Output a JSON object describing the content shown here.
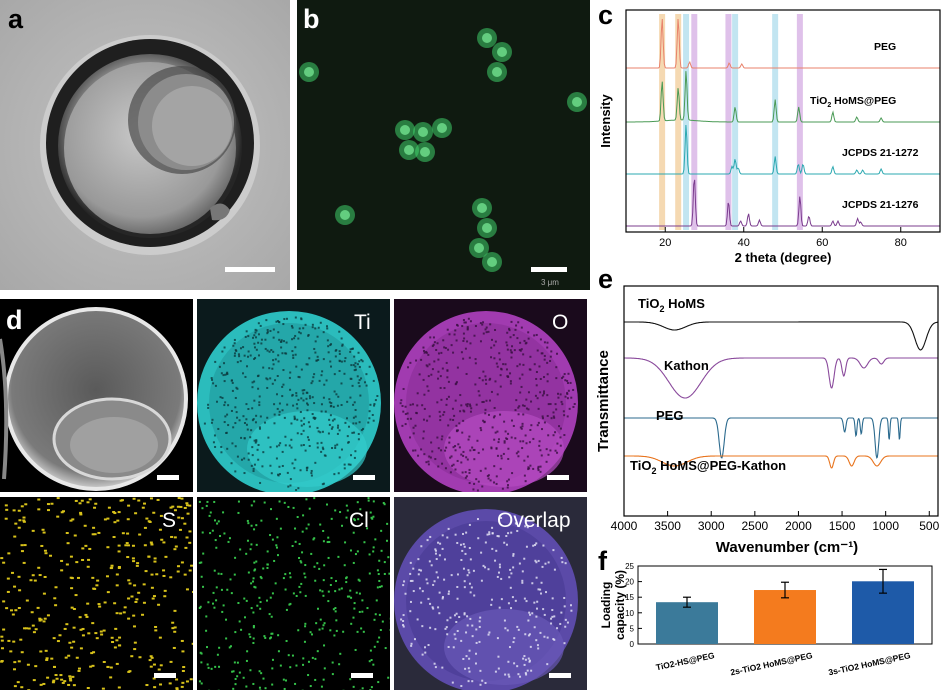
{
  "panels": {
    "a": {
      "letter": "a"
    },
    "b": {
      "letter": "b",
      "scale_text": "3 μm"
    },
    "c": {
      "letter": "c"
    },
    "d": {
      "letter": "d",
      "maps": [
        "Ti",
        "O",
        "S",
        "Cl",
        "Overlap"
      ]
    },
    "e": {
      "letter": "e"
    },
    "f": {
      "letter": "f"
    }
  },
  "colors": {
    "ti_map": "#2fc6c6",
    "o_map": "#a63ab3",
    "s_map": "#d8c21a",
    "cl_map": "#35c24a",
    "fluor": "#3fd06a"
  },
  "chart_data": [
    {
      "id": "c",
      "type": "line",
      "xlabel": "2 theta (degree)",
      "ylabel": "Intensity",
      "xlim": [
        10,
        90
      ],
      "xticks": [
        20,
        40,
        60,
        80
      ],
      "series": [
        {
          "name": "PEG",
          "color": "#e8826b",
          "peaks": [
            [
              19.2,
              1.0
            ],
            [
              23.3,
              1.0
            ],
            [
              26.2,
              0.12
            ],
            [
              36.3,
              0.1
            ],
            [
              39.5,
              0.08
            ]
          ]
        },
        {
          "name": "TiO2 HoMS@PEG",
          "color": "#4a9a55",
          "peaks": [
            [
              19.2,
              0.8
            ],
            [
              23.3,
              0.65
            ],
            [
              25.3,
              1.0
            ],
            [
              37.8,
              0.3
            ],
            [
              48.0,
              0.45
            ],
            [
              54.0,
              0.3
            ],
            [
              62.7,
              0.2
            ],
            [
              68.8,
              0.1
            ],
            [
              75.0,
              0.08
            ]
          ]
        },
        {
          "name": "JCPDS 21-1272",
          "color": "#2ba8b0",
          "peaks": [
            [
              25.3,
              1.0
            ],
            [
              37.0,
              0.15
            ],
            [
              37.8,
              0.3
            ],
            [
              38.6,
              0.12
            ],
            [
              48.0,
              0.35
            ],
            [
              53.9,
              0.2
            ],
            [
              55.1,
              0.2
            ],
            [
              62.7,
              0.15
            ],
            [
              68.8,
              0.08
            ],
            [
              70.3,
              0.08
            ],
            [
              75.0,
              0.1
            ]
          ]
        },
        {
          "name": "JCPDS 21-1276",
          "color": "#7b3c8e",
          "peaks": [
            [
              27.4,
              1.0
            ],
            [
              36.1,
              0.5
            ],
            [
              39.2,
              0.1
            ],
            [
              41.2,
              0.25
            ],
            [
              44.0,
              0.12
            ],
            [
              54.3,
              0.6
            ],
            [
              56.6,
              0.2
            ],
            [
              62.7,
              0.1
            ],
            [
              64.0,
              0.1
            ],
            [
              69.0,
              0.15
            ],
            [
              69.8,
              0.08
            ]
          ]
        }
      ],
      "highlight_bands": [
        {
          "x": 19.2,
          "color": "#f3d2a4"
        },
        {
          "x": 23.3,
          "color": "#f3d2a4"
        },
        {
          "x": 25.3,
          "color": "#b7e0ef"
        },
        {
          "x": 37.8,
          "color": "#b7e0ef"
        },
        {
          "x": 48.0,
          "color": "#b7e0ef"
        },
        {
          "x": 27.4,
          "color": "#d9b6e6"
        },
        {
          "x": 36.1,
          "color": "#d9b6e6"
        },
        {
          "x": 54.3,
          "color": "#d9b6e6"
        }
      ]
    },
    {
      "id": "e",
      "type": "line",
      "xlabel": "Wavenumber (cm⁻¹)",
      "ylabel": "Transmittance",
      "xlim": [
        4000,
        400
      ],
      "xticks": [
        4000,
        3500,
        3000,
        2500,
        2000,
        1500,
        1000,
        500
      ],
      "series": [
        {
          "name": "TiO2 HoMS",
          "color": "#111111"
        },
        {
          "name": "Kathon",
          "color": "#8a4a9c"
        },
        {
          "name": "PEG",
          "color": "#2b6a8e"
        },
        {
          "name": "TiO2 HoMS@PEG-Kathon",
          "color": "#e8741e"
        }
      ]
    },
    {
      "id": "f",
      "type": "bar",
      "ylabel": "Loading capacity (%)",
      "categories": [
        "TiO2-HS@PEG",
        "2s-TiO2 HoMS@PEG",
        "3s-TiO2 HoMS@PEG"
      ],
      "values": [
        13.4,
        17.3,
        20.1
      ],
      "errors": [
        1.6,
        2.5,
        3.8
      ],
      "colors": [
        "#3b7a9a",
        "#f47b1e",
        "#1e5aa8"
      ],
      "ylim": [
        0,
        25
      ],
      "yticks": [
        0,
        5,
        10,
        15,
        20,
        25
      ]
    }
  ]
}
